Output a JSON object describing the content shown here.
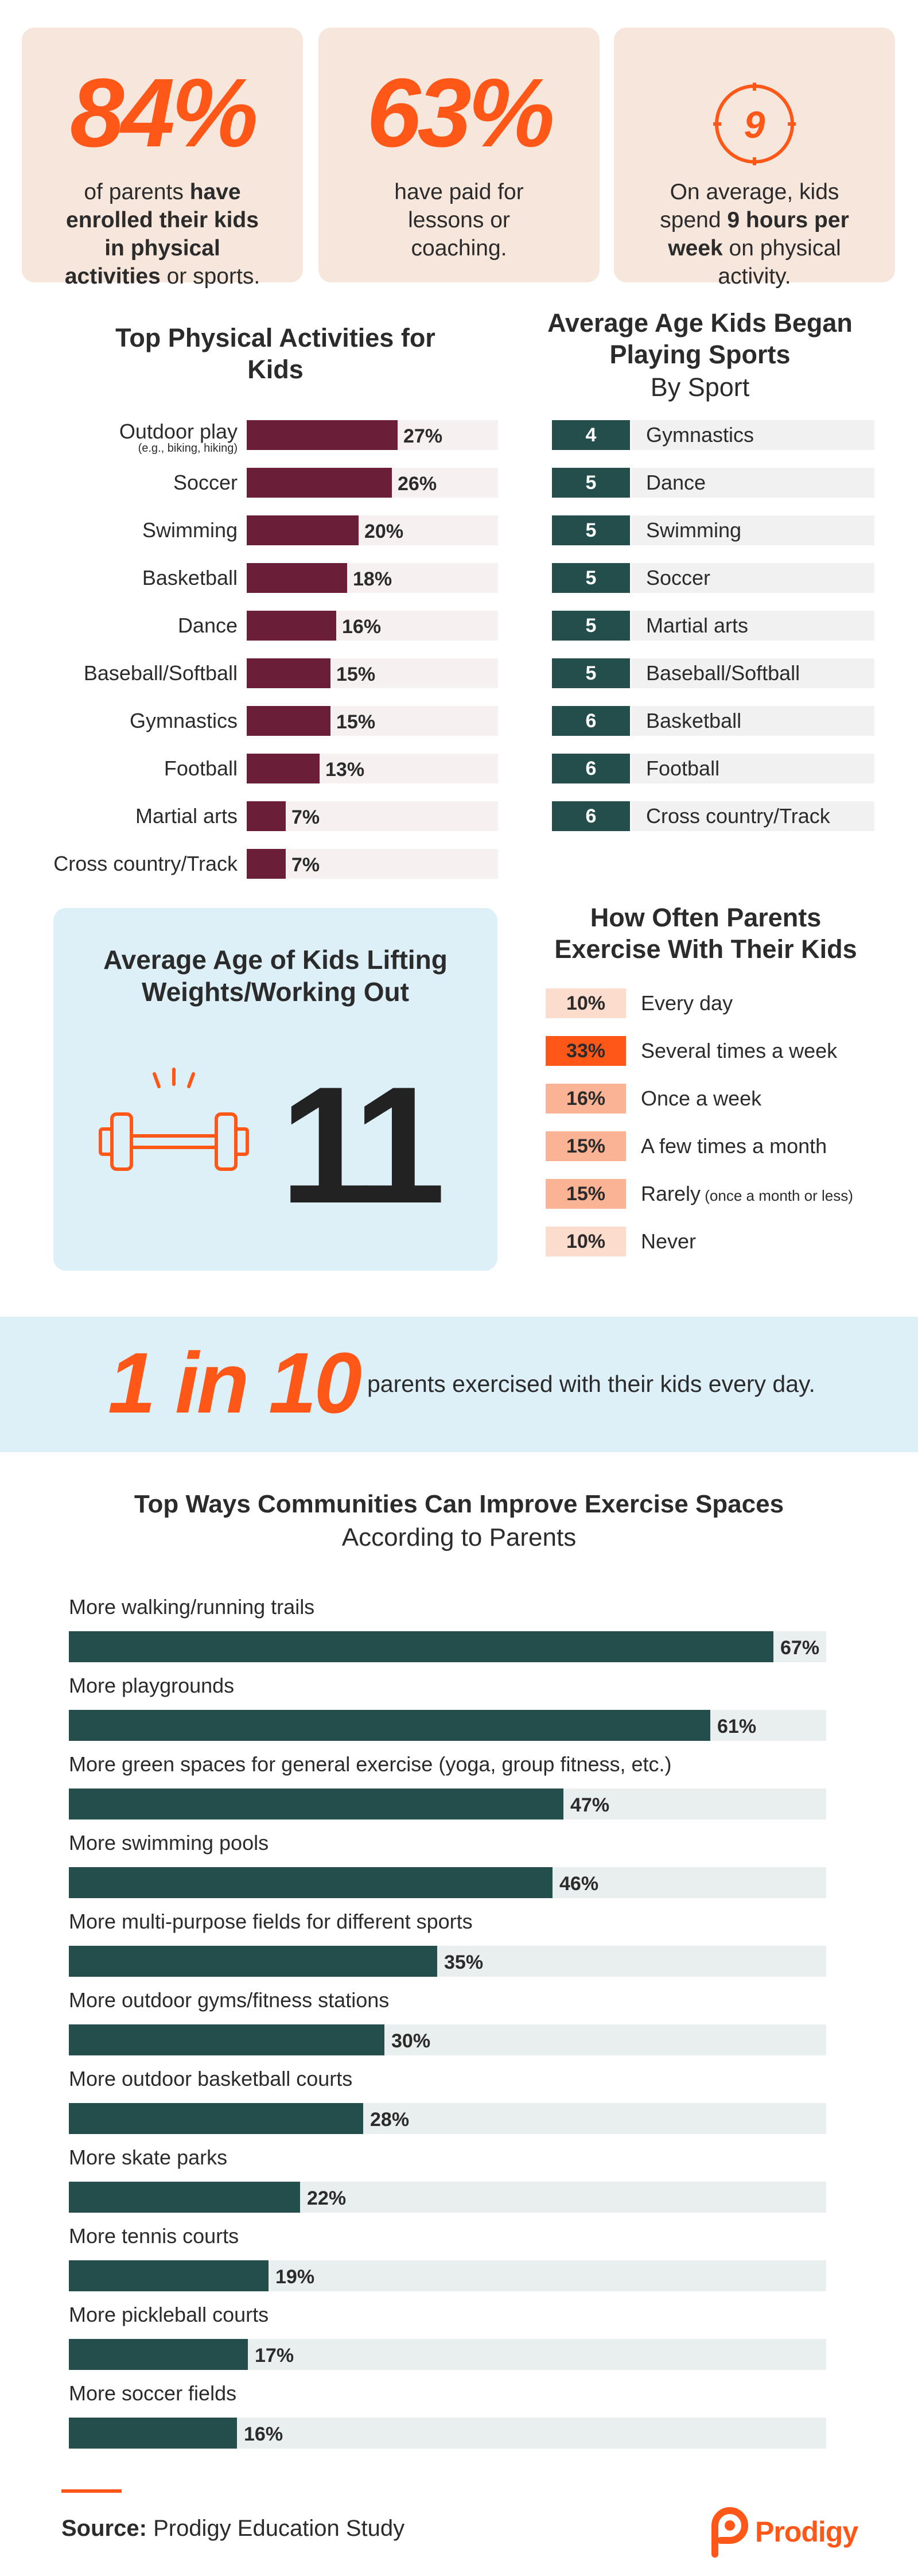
{
  "stats": [
    {
      "big": "84%",
      "pre": "of parents ",
      "bold": "have enrolled their kids in physical activities",
      "post": " or sports."
    },
    {
      "big": "63%",
      "pre": "have paid for lessons or coaching.",
      "bold": "",
      "post": ""
    },
    {
      "icon": "clock-icon",
      "icon_value": "9",
      "pre": "On average, kids spend ",
      "bold": "9 hours per week",
      "post": " on physical activity."
    }
  ],
  "colors": {
    "accent": "#ff5717",
    "maroon": "#6b1e38",
    "teal": "#244e4b",
    "card_peach": "#f6e6db",
    "card_blue": "#ddeff7"
  },
  "activities_title": "Top Physical Activities for Kids",
  "age_title": "Average Age Kids Began Playing Sports",
  "age_subtitle": "By Sport",
  "lifting": {
    "title": "Average Age of Kids Lifting Weights/Working Out",
    "value": "11",
    "icon": "dumbbell-icon"
  },
  "frequency_title": "How Often Parents Exercise With Their Kids",
  "frequency_note": "(once a month or less)",
  "banner": {
    "big": "1 in 10",
    "text": "parents exercised with their kids every day."
  },
  "community_title": "Top Ways Communities Can Improve Exercise Spaces",
  "community_subtitle": "According to Parents",
  "source_label": "Source:",
  "source_text": "Prodigy Education Study",
  "logo_text": "Prodigy",
  "chart_data": [
    {
      "type": "bar",
      "orientation": "horizontal",
      "title": "Top Physical Activities for Kids",
      "categories": [
        "Outdoor play",
        "Soccer",
        "Swimming",
        "Basketball",
        "Dance",
        "Baseball/Softball",
        "Gymnastics",
        "Football",
        "Martial arts",
        "Cross country/Track"
      ],
      "category_notes": [
        "(e.g., biking, hiking)",
        "",
        "",
        "",
        "",
        "",
        "",
        "",
        "",
        ""
      ],
      "values": [
        27,
        26,
        20,
        18,
        16,
        15,
        15,
        13,
        7,
        7
      ],
      "labels": [
        "27%",
        "26%",
        "20%",
        "18%",
        "16%",
        "15%",
        "15%",
        "13%",
        "7%",
        "7%"
      ],
      "xlim": [
        0,
        45
      ]
    },
    {
      "type": "table",
      "title": "Average Age Kids Began Playing Sports",
      "subtitle": "By Sport",
      "categories": [
        "Gymnastics",
        "Dance",
        "Swimming",
        "Soccer",
        "Martial arts",
        "Baseball/Softball",
        "Basketball",
        "Football",
        "Cross country/Track"
      ],
      "values": [
        4,
        5,
        5,
        5,
        5,
        5,
        6,
        6,
        6
      ]
    },
    {
      "type": "table",
      "title": "How Often Parents Exercise With Their Kids",
      "categories": [
        "Every day",
        "Several times a week",
        "Once a week",
        "A few times a month",
        "Rarely",
        "Never"
      ],
      "values": [
        10,
        33,
        16,
        15,
        15,
        10
      ],
      "labels": [
        "10%",
        "33%",
        "16%",
        "15%",
        "15%",
        "10%"
      ],
      "colors": [
        "#fcdccd",
        "#ff5717",
        "#fab394",
        "#fab394",
        "#fab394",
        "#fcdccd"
      ]
    },
    {
      "type": "bar",
      "orientation": "horizontal",
      "title": "Top Ways Communities Can Improve Exercise Spaces",
      "subtitle": "According to Parents",
      "categories": [
        "More walking/running trails",
        "More playgrounds",
        "More green spaces for general exercise (yoga, group fitness, etc.)",
        "More swimming pools",
        "More multi-purpose fields for different sports",
        "More outdoor gyms/fitness stations",
        "More outdoor basketball courts",
        "More skate parks",
        "More tennis courts",
        "More pickleball courts",
        "More soccer fields"
      ],
      "values": [
        67,
        61,
        47,
        46,
        35,
        30,
        28,
        22,
        19,
        17,
        16
      ],
      "labels": [
        "67%",
        "61%",
        "47%",
        "46%",
        "35%",
        "30%",
        "28%",
        "22%",
        "19%",
        "17%",
        "16%"
      ],
      "xlim": [
        0,
        72
      ]
    }
  ]
}
